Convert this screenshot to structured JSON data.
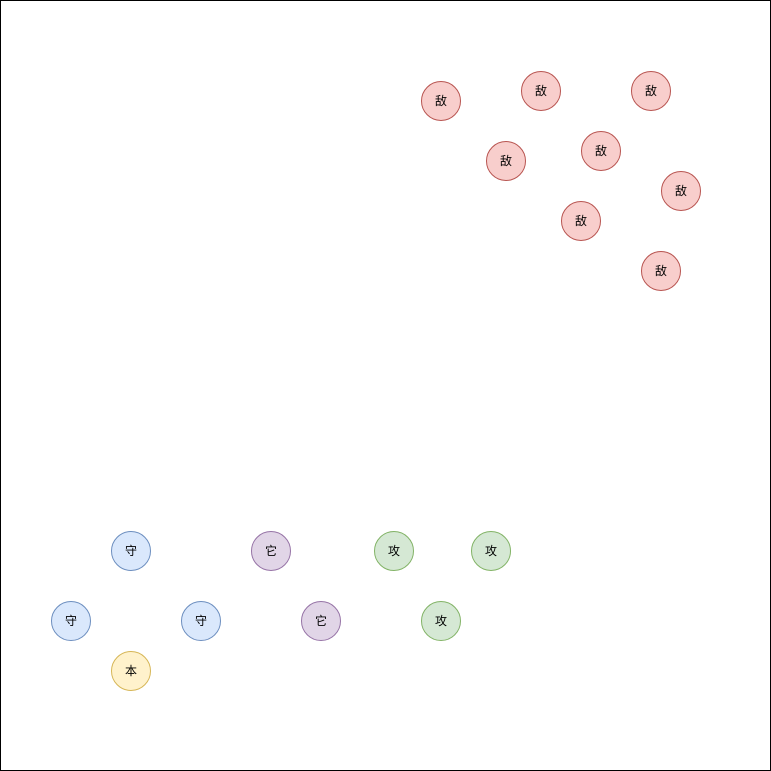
{
  "styles": {
    "enemy": {
      "fill": "#f8cecc",
      "stroke": "#b85450"
    },
    "defend": {
      "fill": "#dae8fc",
      "stroke": "#6c8ebf"
    },
    "base": {
      "fill": "#fff2cc",
      "stroke": "#d6b656"
    },
    "other": {
      "fill": "#e1d5e7",
      "stroke": "#9673a6"
    },
    "attack": {
      "fill": "#d5e8d4",
      "stroke": "#82b366"
    }
  },
  "enemies": [
    {
      "label": "敌"
    },
    {
      "label": "敌"
    },
    {
      "label": "敌"
    },
    {
      "label": "敌"
    },
    {
      "label": "敌"
    },
    {
      "label": "敌"
    },
    {
      "label": "敌"
    },
    {
      "label": "敌"
    }
  ],
  "defenders": [
    {
      "label": "守"
    },
    {
      "label": "守"
    },
    {
      "label": "守"
    }
  ],
  "base": [
    {
      "label": "本"
    }
  ],
  "others": [
    {
      "label": "它"
    },
    {
      "label": "它"
    }
  ],
  "attackers": [
    {
      "label": "攻"
    },
    {
      "label": "攻"
    },
    {
      "label": "攻"
    }
  ]
}
